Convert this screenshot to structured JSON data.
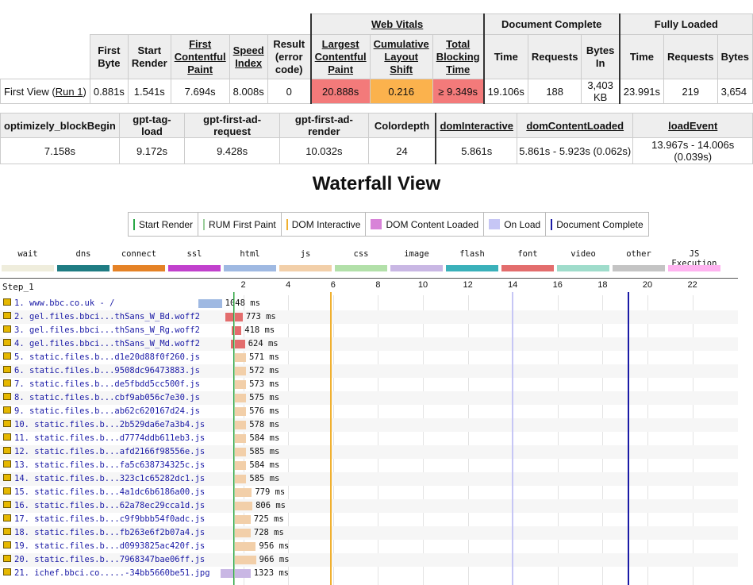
{
  "summary": {
    "group_headers": {
      "web_vitals": "Web Vitals",
      "document_complete": "Document Complete",
      "fully_loaded": "Fully Loaded"
    },
    "columns": {
      "first_byte": "First Byte",
      "start_render": "Start Render",
      "fcp": "First Contentful Paint",
      "speed_index": "Speed Index",
      "result": "Result (error code)",
      "lcp": "Largest Contentful Paint",
      "cls": "Cumulative Layout Shift",
      "tbt": "Total Blocking Time",
      "dc_time": "Time",
      "dc_requests": "Requests",
      "dc_bytes": "Bytes In",
      "fl_time": "Time",
      "fl_requests": "Requests",
      "fl_bytes": "Bytes"
    },
    "row": {
      "label": "First View (",
      "run_link": "Run 1",
      "label_end": ")",
      "first_byte": "0.881s",
      "start_render": "1.541s",
      "fcp": "7.694s",
      "speed_index": "8.008s",
      "result": "0",
      "lcp": "20.888s",
      "cls": "0.216",
      "tbt": "≥ 9.349s",
      "dc_time": "19.106s",
      "dc_requests": "188",
      "dc_bytes": "3,403 KB",
      "fl_time": "23.991s",
      "fl_requests": "219",
      "fl_bytes": "3,654"
    }
  },
  "metrics": {
    "headers": [
      "optimizely_blockBegin",
      "gpt-tag-load",
      "gpt-first-ad-request",
      "gpt-first-ad-render",
      "Colordepth",
      "domInteractive",
      "domContentLoaded",
      "loadEvent"
    ],
    "values": [
      "7.158s",
      "9.172s",
      "9.428s",
      "10.032s",
      "24",
      "5.861s",
      "5.861s - 5.923s (0.062s)",
      "13.967s - 14.006s (0.039s)"
    ]
  },
  "waterfall": {
    "title": "Waterfall View",
    "event_legend": [
      {
        "label": "Start Render",
        "color": "#28a745"
      },
      {
        "label": "RUM First Paint",
        "color": "#9acd9a"
      },
      {
        "label": "DOM Interactive",
        "color": "#f0b030"
      },
      {
        "label": "DOM Content Loaded",
        "color": "#d883d8"
      },
      {
        "label": "On Load",
        "color": "#c6c6f5"
      },
      {
        "label": "Document Complete",
        "color": "#1a1aa6"
      }
    ],
    "type_legend": [
      {
        "label": "wait",
        "color": "#efeddc"
      },
      {
        "label": "dns",
        "color": "#1f7c83"
      },
      {
        "label": "connect",
        "color": "#e58226"
      },
      {
        "label": "ssl",
        "color": "#c141cd"
      },
      {
        "label": "html",
        "color": "#9fb9e2"
      },
      {
        "label": "js",
        "color": "#f2cfa9"
      },
      {
        "label": "css",
        "color": "#b2e0a9"
      },
      {
        "label": "image",
        "color": "#c9b7e4"
      },
      {
        "label": "flash",
        "color": "#3ab1ba"
      },
      {
        "label": "font",
        "color": "#e36d6d"
      },
      {
        "label": "video",
        "color": "#9fdccb"
      },
      {
        "label": "other",
        "color": "#c4c4c4"
      },
      {
        "label": "JS Execution",
        "color": "#ffb3f0"
      }
    ],
    "step_label": "Step_1",
    "axis_ticks": [
      "2",
      "4",
      "6",
      "8",
      "10",
      "12",
      "14",
      "16",
      "18",
      "20",
      "22"
    ],
    "requests": [
      {
        "name": "1. www.bbc.co.uk - /",
        "ms": "1048 ms",
        "start": 0.0,
        "dur": 1.048,
        "color": "#9fb9e2"
      },
      {
        "name": "2. gel.files.bbci...thSans_W_Bd.woff2",
        "ms": "773 ms",
        "start": 1.2,
        "dur": 0.773,
        "color": "#e36d6d"
      },
      {
        "name": "3. gel.files.bbci...thSans_W_Rg.woff2",
        "ms": "418 ms",
        "start": 1.5,
        "dur": 0.418,
        "color": "#e36d6d"
      },
      {
        "name": "4. gel.files.bbci...thSans_W_Md.woff2",
        "ms": "624 ms",
        "start": 1.45,
        "dur": 0.624,
        "color": "#e36d6d"
      },
      {
        "name": "5. static.files.b...d1e20d88f0f260.js",
        "ms": "571 ms",
        "start": 1.55,
        "dur": 0.571,
        "color": "#f2cfa9"
      },
      {
        "name": "6. static.files.b...9508dc96473883.js",
        "ms": "572 ms",
        "start": 1.55,
        "dur": 0.572,
        "color": "#f2cfa9"
      },
      {
        "name": "7. static.files.b...de5fbdd5cc500f.js",
        "ms": "573 ms",
        "start": 1.55,
        "dur": 0.573,
        "color": "#f2cfa9"
      },
      {
        "name": "8. static.files.b...cbf9ab056c7e30.js",
        "ms": "575 ms",
        "start": 1.55,
        "dur": 0.575,
        "color": "#f2cfa9"
      },
      {
        "name": "9. static.files.b...ab62c620167d24.js",
        "ms": "576 ms",
        "start": 1.55,
        "dur": 0.576,
        "color": "#f2cfa9"
      },
      {
        "name": "10. static.files.b...2b529da6e7a3b4.js",
        "ms": "578 ms",
        "start": 1.55,
        "dur": 0.578,
        "color": "#f2cfa9"
      },
      {
        "name": "11. static.files.b...d7774ddb611eb3.js",
        "ms": "584 ms",
        "start": 1.55,
        "dur": 0.584,
        "color": "#f2cfa9"
      },
      {
        "name": "12. static.files.b...afd2166f98556e.js",
        "ms": "585 ms",
        "start": 1.55,
        "dur": 0.585,
        "color": "#f2cfa9"
      },
      {
        "name": "13. static.files.b...fa5c638734325c.js",
        "ms": "584 ms",
        "start": 1.55,
        "dur": 0.584,
        "color": "#f2cfa9"
      },
      {
        "name": "14. static.files.b...323c1c65282dc1.js",
        "ms": "585 ms",
        "start": 1.55,
        "dur": 0.585,
        "color": "#f2cfa9"
      },
      {
        "name": "15. static.files.b...4a1dc6b6186a00.js",
        "ms": "779 ms",
        "start": 1.6,
        "dur": 0.779,
        "color": "#f2cfa9"
      },
      {
        "name": "16. static.files.b...62a78ec29cca1d.js",
        "ms": "806 ms",
        "start": 1.6,
        "dur": 0.806,
        "color": "#f2cfa9"
      },
      {
        "name": "17. static.files.b...c9f9bbb54f0adc.js",
        "ms": "725 ms",
        "start": 1.6,
        "dur": 0.725,
        "color": "#f2cfa9"
      },
      {
        "name": "18. static.files.b...fb263e6f2b07a4.js",
        "ms": "728 ms",
        "start": 1.6,
        "dur": 0.728,
        "color": "#f2cfa9"
      },
      {
        "name": "19. static.files.b...d0993825ac420f.js",
        "ms": "956 ms",
        "start": 1.6,
        "dur": 0.956,
        "color": "#f2cfa9"
      },
      {
        "name": "20. static.files.b...7968347bae06ff.js",
        "ms": "966 ms",
        "start": 1.6,
        "dur": 0.966,
        "color": "#f2cfa9"
      },
      {
        "name": "21. ichef.bbci.co.....-34bb5660be51.jpg",
        "ms": "1323 ms",
        "start": 1.0,
        "dur": 1.323,
        "color": "#c9b7e4"
      }
    ],
    "event_times": {
      "start_render": 1.541,
      "rum_first_paint": 1.6,
      "dom_interactive": 5.861,
      "on_load": 13.967,
      "document_complete": 19.106
    },
    "time_range": [
      0,
      24
    ]
  }
}
